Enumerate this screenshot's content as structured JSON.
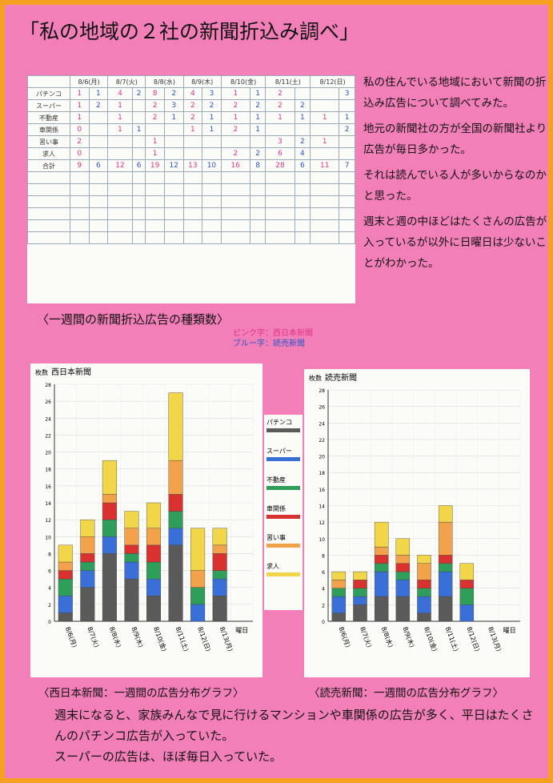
{
  "title": "「私の地域の２社の新聞折込み調べ」",
  "paragraphs": [
    "私の住んでいる地域において新聞の折込み広告について調べてみた。",
    "地元の新聞社の方が全国の新聞社より広告が毎日多かった。",
    "それは読んでいる人が多いからなのかと思った。",
    "週末と週の中ほどはたくさんの広告が入っているが以外に日曜日は少ないことがわかった。"
  ],
  "table": {
    "caption": "〈一週間の新聞折込広告の種類数〉",
    "legend": [
      "ピンク字：西日本新聞",
      "ブルー字：読売新聞"
    ],
    "days": [
      "8/6(月)",
      "8/7(火)",
      "8/8(水)",
      "8/9(木)",
      "8/10(金)",
      "8/11(土)",
      "8/12(日)"
    ],
    "rows": [
      {
        "label": "パチンコ",
        "cells": [
          "1",
          "1",
          "4",
          "2",
          "8",
          "2",
          "4",
          "3",
          "1",
          "1",
          "2",
          null,
          null,
          "3"
        ]
      },
      {
        "label": "スーパー",
        "cells": [
          "1",
          "2",
          "1",
          null,
          "2",
          "3",
          "2",
          "2",
          "2",
          "2",
          "2",
          "2",
          null,
          null
        ]
      },
      {
        "label": "不動産",
        "cells": [
          "1",
          null,
          "1",
          null,
          "2",
          "1",
          "2",
          "1",
          "1",
          "1",
          "1",
          "1",
          "1",
          "1"
        ]
      },
      {
        "label": "車関係",
        "cells": [
          "0",
          null,
          "1",
          "1",
          null,
          null,
          "1",
          "1",
          "2",
          "1",
          null,
          null,
          null,
          "2"
        ]
      },
      {
        "label": "習い事",
        "cells": [
          "2",
          null,
          null,
          null,
          "1",
          null,
          null,
          null,
          null,
          null,
          "3",
          "2",
          "1",
          null
        ]
      },
      {
        "label": "求人",
        "cells": [
          "0",
          null,
          null,
          null,
          "1",
          null,
          null,
          null,
          "2",
          "2",
          "6",
          "4",
          null,
          null
        ]
      },
      {
        "label": "合計",
        "cells": [
          "9",
          "6",
          "12",
          "6",
          "19",
          "12",
          "13",
          "10",
          "16",
          "8",
          "28",
          "6",
          "11",
          "7"
        ]
      }
    ]
  },
  "chart_data": [
    {
      "type": "bar",
      "stacked": true,
      "title": "西日本新聞",
      "ylabel": "枚数",
      "xlabel": "曜日",
      "caption": "〈西日本新聞：一週間の広告分布グラフ〉",
      "categories": [
        "8/6(月)",
        "8/7(火)",
        "8/8(水)",
        "8/9(木)",
        "8/10(金)",
        "8/11(土)",
        "8/12(日)",
        "8/13(月)"
      ],
      "ylim": [
        0,
        28
      ],
      "yticks": [
        0,
        2,
        4,
        6,
        8,
        10,
        12,
        14,
        16,
        18,
        20,
        22,
        24,
        26,
        28
      ],
      "grid": true,
      "series": [
        {
          "name": "パチンコ",
          "color": "#5a5a5a",
          "values": [
            1,
            4,
            8,
            5,
            3,
            9,
            0,
            3
          ]
        },
        {
          "name": "スーパー",
          "color": "#3a6fd8",
          "values": [
            2,
            2,
            2,
            2,
            2,
            2,
            2,
            2
          ]
        },
        {
          "name": "不動産",
          "color": "#2f9e5a",
          "values": [
            2,
            1,
            2,
            1,
            2,
            2,
            2,
            1
          ]
        },
        {
          "name": "車関係",
          "color": "#d93030",
          "values": [
            1,
            1,
            2,
            1,
            2,
            2,
            0,
            2
          ]
        },
        {
          "name": "習い事",
          "color": "#f2a24a",
          "values": [
            1,
            2,
            1,
            2,
            2,
            4,
            2,
            1
          ]
        },
        {
          "name": "求人",
          "color": "#f2d64a",
          "values": [
            2,
            2,
            4,
            2,
            3,
            8,
            5,
            2
          ]
        }
      ]
    },
    {
      "type": "bar",
      "stacked": true,
      "title": "読売新聞",
      "ylabel": "枚数",
      "xlabel": "曜日",
      "caption": "〈読売新聞：一週間の広告分布グラフ〉",
      "categories": [
        "8/6(月)",
        "8/7(火)",
        "8/8(水)",
        "8/9(木)",
        "8/10(金)",
        "8/11(土)",
        "8/12(日)",
        "8/13(月)"
      ],
      "ylim": [
        0,
        28
      ],
      "yticks": [
        0,
        2,
        4,
        6,
        8,
        10,
        12,
        14,
        16,
        18,
        20,
        22,
        24,
        26,
        28
      ],
      "grid": true,
      "series": [
        {
          "color": "#5a5a5a",
          "values": [
            1,
            2,
            3,
            3,
            1,
            3,
            0,
            0
          ]
        },
        {
          "color": "#3a6fd8",
          "values": [
            2,
            1,
            3,
            2,
            2,
            3,
            2,
            0
          ]
        },
        {
          "color": "#2f9e5a",
          "values": [
            1,
            1,
            1,
            1,
            1,
            1,
            2,
            0
          ]
        },
        {
          "color": "#d93030",
          "values": [
            0,
            1,
            1,
            1,
            1,
            1,
            1,
            0
          ]
        },
        {
          "color": "#f2a24a",
          "values": [
            1,
            0,
            1,
            1,
            2,
            4,
            0,
            0
          ]
        },
        {
          "color": "#f2d64a",
          "values": [
            1,
            1,
            3,
            2,
            1,
            2,
            2,
            0
          ]
        }
      ]
    }
  ],
  "conclusion": [
    "週末になると、家族みんなで見に行けるマンションや車関係の広告が多く、平日はたくさんのパチンコ広告が入っていた。",
    "スーパーの広告は、ほぼ毎日入っていた。"
  ]
}
